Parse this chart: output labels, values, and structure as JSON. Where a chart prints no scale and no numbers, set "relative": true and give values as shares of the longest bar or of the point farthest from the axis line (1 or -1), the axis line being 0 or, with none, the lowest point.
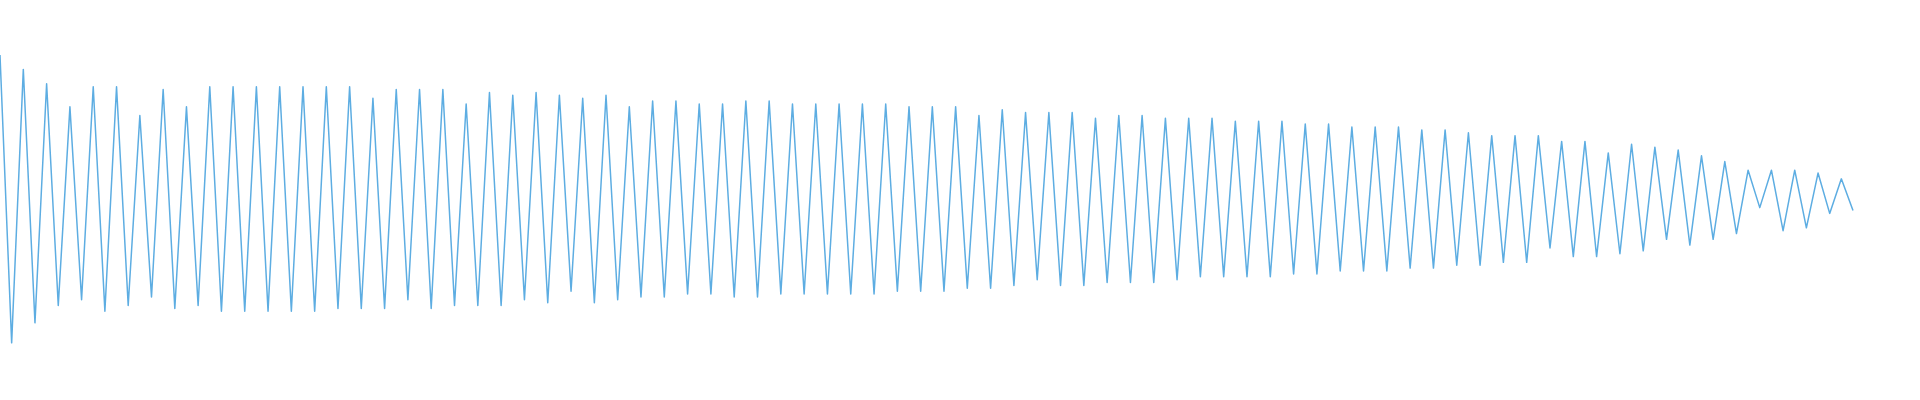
{
  "chart_data": {
    "type": "line",
    "relative": true,
    "marker": "none",
    "color": "#5dade2",
    "categories": [
      null,
      null,
      null,
      null,
      null,
      null,
      null,
      null,
      null,
      null,
      null,
      null,
      null,
      null,
      null,
      null,
      null,
      null,
      null,
      null,
      null,
      null,
      null,
      null,
      null,
      null,
      null,
      null,
      null,
      null,
      null,
      null,
      null,
      null,
      null,
      null,
      null,
      null,
      null,
      null,
      null,
      null,
      null,
      null,
      null,
      null,
      null,
      null,
      null,
      null,
      null,
      null,
      null,
      null,
      null,
      null,
      null,
      null,
      null,
      null,
      null,
      null,
      null,
      null,
      null,
      null,
      null,
      null,
      null,
      null,
      null,
      null,
      null,
      null,
      null,
      null,
      null,
      null,
      null,
      null,
      null,
      null,
      null,
      null,
      null,
      null,
      null,
      null,
      null,
      null,
      null,
      null,
      null,
      null,
      null,
      null,
      null,
      null,
      null,
      null,
      null,
      null,
      null,
      null,
      null,
      null,
      null,
      null,
      null,
      null,
      null,
      null,
      null,
      null,
      null,
      null,
      null,
      null,
      null,
      null,
      null,
      null,
      null,
      null,
      null,
      null,
      null,
      null,
      null,
      null,
      null,
      null,
      null,
      null,
      null,
      null,
      null,
      null,
      null,
      null,
      null,
      null,
      null,
      null,
      null,
      null,
      null,
      null,
      null,
      null,
      null,
      null,
      null,
      null,
      null,
      null,
      null,
      null,
      null,
      null
    ],
    "values": [
      1,
      0,
      0.95,
      0.07,
      0.9,
      0.13,
      0.82,
      0.15,
      0.89,
      0.11,
      0.89,
      0.13,
      0.79,
      0.16,
      0.88,
      0.12,
      0.82,
      0.13,
      0.89,
      0.11,
      0.89,
      0.11,
      0.89,
      0.11,
      0.89,
      0.11,
      0.89,
      0.11,
      0.89,
      0.12,
      0.89,
      0.12,
      0.85,
      0.12,
      0.88,
      0.15,
      0.88,
      0.12,
      0.88,
      0.13,
      0.83,
      0.13,
      0.87,
      0.13,
      0.86,
      0.15,
      0.87,
      0.14,
      0.86,
      0.18,
      0.85,
      0.14,
      0.86,
      0.15,
      0.82,
      0.16,
      0.84,
      0.16,
      0.84,
      0.17,
      0.83,
      0.17,
      0.83,
      0.16,
      0.84,
      0.16,
      0.84,
      0.17,
      0.83,
      0.17,
      0.83,
      0.17,
      0.83,
      0.17,
      0.83,
      0.17,
      0.83,
      0.18,
      0.82,
      0.18,
      0.82,
      0.18,
      0.82,
      0.19,
      0.79,
      0.19,
      0.81,
      0.2,
      0.8,
      0.22,
      0.8,
      0.2,
      0.8,
      0.2,
      0.78,
      0.21,
      0.79,
      0.21,
      0.79,
      0.21,
      0.78,
      0.22,
      0.78,
      0.23,
      0.78,
      0.23,
      0.77,
      0.23,
      0.77,
      0.23,
      0.77,
      0.24,
      0.76,
      0.24,
      0.76,
      0.25,
      0.75,
      0.25,
      0.75,
      0.25,
      0.75,
      0.26,
      0.74,
      0.26,
      0.74,
      0.27,
      0.73,
      0.27,
      0.72,
      0.28,
      0.72,
      0.28,
      0.72,
      0.33,
      0.7,
      0.3,
      0.7,
      0.3,
      0.66,
      0.31,
      0.69,
      0.32,
      0.68,
      0.36,
      0.67,
      0.34,
      0.65,
      0.36,
      0.63,
      0.38,
      0.6,
      0.47,
      0.6,
      0.39,
      0.6,
      0.4,
      0.59,
      0.45,
      0.57,
      0.46
    ]
  }
}
